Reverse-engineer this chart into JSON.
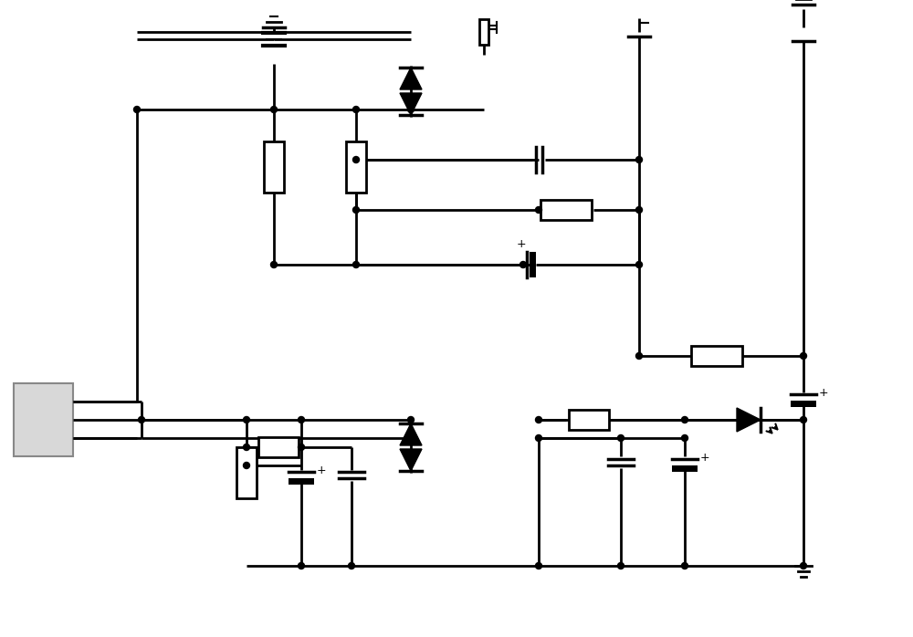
{
  "bg_color": "#ffffff",
  "line_color": "#000000",
  "line_width": 2.0,
  "fig_width": 10.0,
  "fig_height": 6.98,
  "dpi": 100
}
